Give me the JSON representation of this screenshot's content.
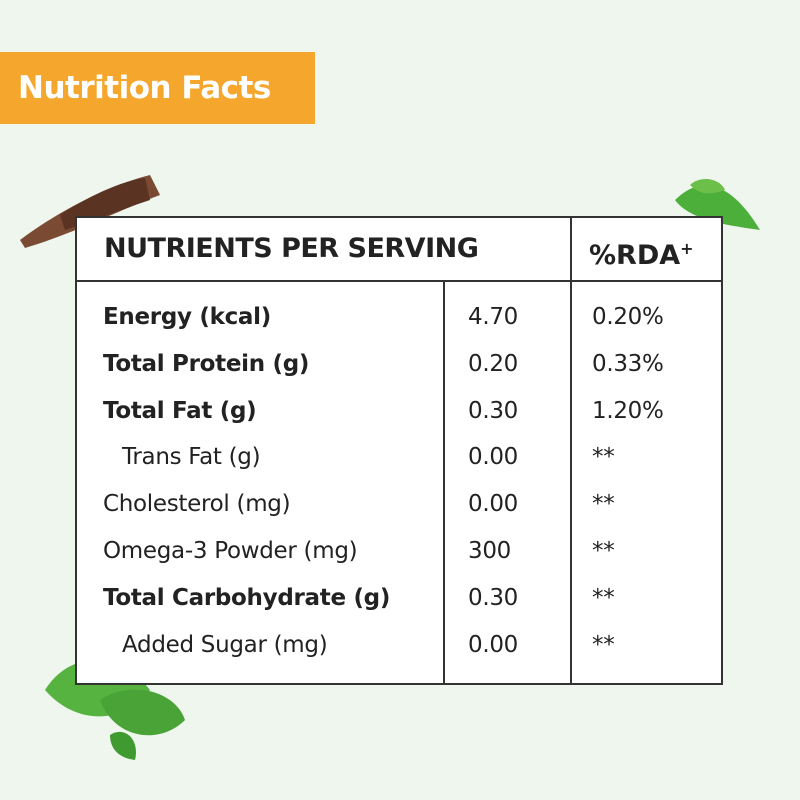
{
  "header": {
    "title": "Nutrition Facts"
  },
  "table": {
    "heading": "NUTRIENTS PER SERVING",
    "rda_heading": "%RDA",
    "rda_mark": "+",
    "rows": [
      {
        "nutrient": "Energy (kcal)",
        "amount": "4.70",
        "rda": "0.20%",
        "bold": true,
        "indent": false
      },
      {
        "nutrient": "Total Protein (g)",
        "amount": "0.20",
        "rda": "0.33%",
        "bold": true,
        "indent": false
      },
      {
        "nutrient": "Total Fat (g)",
        "amount": "0.30",
        "rda": "1.20%",
        "bold": true,
        "indent": false
      },
      {
        "nutrient": "Trans Fat (g)",
        "amount": "0.00",
        "rda": "**",
        "bold": false,
        "indent": true
      },
      {
        "nutrient": "Cholesterol (mg)",
        "amount": "0.00",
        "rda": "**",
        "bold": false,
        "indent": false
      },
      {
        "nutrient": "Omega-3 Powder (mg)",
        "amount": "300",
        "rda": "**",
        "bold": false,
        "indent": false
      },
      {
        "nutrient": "Total Carbohydrate (g)",
        "amount": "0.30",
        "rda": "**",
        "bold": true,
        "indent": false
      },
      {
        "nutrient": "Added Sugar (mg)",
        "amount": "0.00",
        "rda": "**",
        "bold": false,
        "indent": true
      }
    ]
  }
}
